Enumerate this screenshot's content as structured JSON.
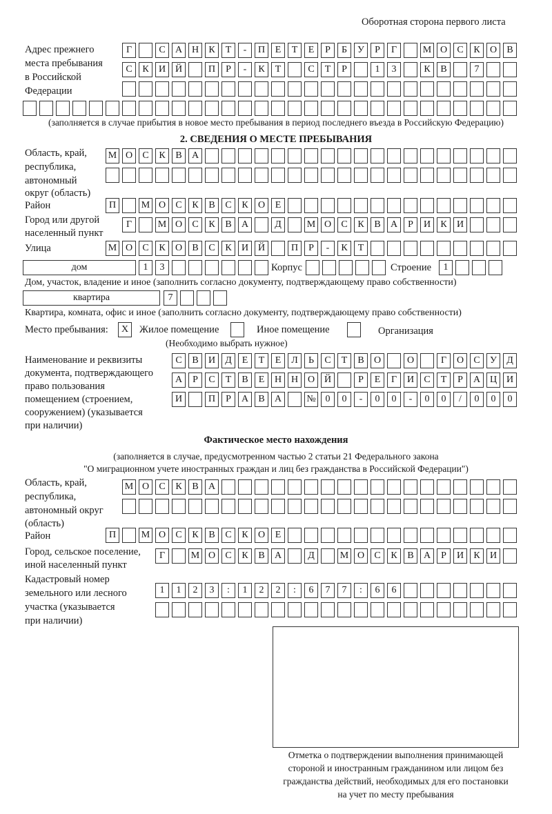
{
  "header": {
    "page_side": "Оборотная сторона первого листа"
  },
  "previous_address": {
    "label": [
      "Адрес прежнего",
      "места пребывания",
      "в Российской",
      "Федерации"
    ],
    "rows": [
      "Г САНКТ-ПЕТЕРБУРГ МОСКОВ",
      "СКИЙ ПР-КТ СТР 13 КВ 7",
      "",
      ""
    ],
    "note": "(заполняется в случае прибытия в новое место пребывания в период последнего въезда в Российскую Федерацию)"
  },
  "section2": {
    "title": "2. СВЕДЕНИЯ О МЕСТЕ ПРЕБЫВАНИЯ",
    "region_label": [
      "Область, край,",
      "республика,",
      "автономный",
      "округ (область)"
    ],
    "region_rows": [
      "МОСКВА",
      ""
    ],
    "district_label": "Район",
    "district": "П МОСКВСКОЕ",
    "city_label": [
      "Город или другой",
      "населенный пункт"
    ],
    "city": "Г МОСКВА Д МОСКВАРИКИ",
    "street_label": "Улица",
    "street": "МОСКОВСКИЙ ПР-КТ",
    "house_type": "дом",
    "house_number": "13",
    "building_label": "Корпус",
    "building": "",
    "structure_label": "Строение",
    "structure": "1",
    "house_note": "Дом, участок, владение и иное (заполнить согласно документу, подтверждающему право собственности)",
    "apartment_type": "квартира",
    "apartment_number": "7",
    "apartment_note": "Квартира, комната, офис и иное (заполнить согласно документу, подтверждающему право собственности)",
    "stay_place_label": "Место пребывания:",
    "stay_options": [
      {
        "label": "Жилое помещение",
        "mark": "X"
      },
      {
        "label": "Иное помещение",
        "mark": ""
      },
      {
        "label": "Организация",
        "mark": ""
      }
    ],
    "stay_note": "(Необходимо выбрать нужное)",
    "document_label": [
      "Наименование и реквизиты",
      "документа, подтверждающего",
      "право пользования",
      "помещением (строением,",
      "сооружением) (указывается",
      "при наличии)"
    ],
    "document_rows": [
      "СВИДЕТЕЛЬСТВО О ГОСУД",
      "АРСТВЕННОЙ РЕГИСТРАЦИ",
      "И ПРАВА №00-00-00/000"
    ]
  },
  "actual": {
    "title": "Фактическое место нахождения",
    "note1": "(заполняется в случае, предусмотренном частью 2 статьи 21 Федерального закона",
    "note2": "\"О миграционном учете иностранных граждан и лиц без гражданства в Российской Федерации\")",
    "region_label": [
      "Область, край,",
      "республика,",
      "автономный округ",
      "(область)"
    ],
    "region_rows": [
      "МОСКВА",
      ""
    ],
    "district_label": "Район",
    "district": "П МОСКВСКОЕ",
    "city_label": [
      "Город, сельское поселение,",
      "иной населенный пункт"
    ],
    "city": "Г МОСКВА Д МОСКВАРИКИ",
    "cadastral_label": [
      "Кадастровый номер",
      "земельного или лесного",
      "участка (указывается",
      "при наличии)"
    ],
    "cadastral_rows": [
      "1123:122:677:66",
      ""
    ]
  },
  "stamp": {
    "caption": [
      "Отметка о подтверждении выполнения принимающей",
      "стороной и иностранным гражданином или лицом без",
      "гражданства действий, необходимых для его постановки",
      "на учет по месту пребывания"
    ]
  }
}
